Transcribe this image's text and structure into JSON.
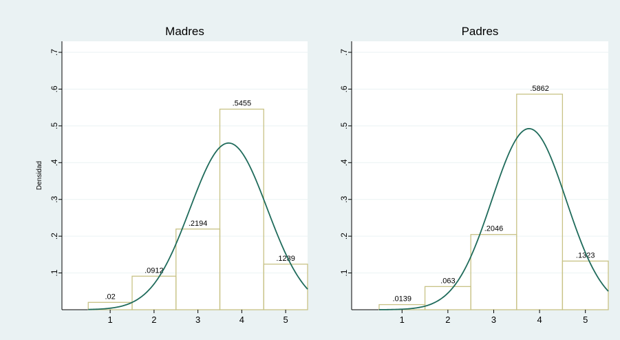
{
  "colors": {
    "figure_bg": "#eaf2f3",
    "plot_bg": "#ffffff",
    "bar_outline": "#c8c285",
    "curve": "#1f6b5b",
    "grid": "#eaf2f3"
  },
  "chart_data": [
    {
      "type": "bar",
      "title": "Madres",
      "ylabel": "Densidad",
      "xlabel": "",
      "categories": [
        "1",
        "2",
        "3",
        "4",
        "5"
      ],
      "values": [
        0.02,
        0.0912,
        0.2194,
        0.5455,
        0.1239
      ],
      "value_labels": [
        ".02",
        ".0912",
        ".2194",
        ".5455",
        ".1239"
      ],
      "x_ticks": [
        "1",
        "2",
        "3",
        "4",
        "5"
      ],
      "y_ticks": [
        ".1",
        ".2",
        ".3",
        ".4",
        ".5",
        ".6",
        ".7"
      ],
      "y_tick_values": [
        0.1,
        0.2,
        0.3,
        0.4,
        0.5,
        0.6,
        0.7
      ],
      "xlim": [
        -0.1,
        5.5
      ],
      "ylim": [
        0,
        0.73
      ],
      "grid": true,
      "overlay": {
        "type": "normal-density",
        "mean": 3.7,
        "sd": 0.88
      }
    },
    {
      "type": "bar",
      "title": "Padres",
      "ylabel": "",
      "xlabel": "",
      "categories": [
        "1",
        "2",
        "3",
        "4",
        "5"
      ],
      "values": [
        0.0139,
        0.063,
        0.2046,
        0.5862,
        0.1323
      ],
      "value_labels": [
        ".0139",
        ".063",
        ".2046",
        ".5862",
        ".1323"
      ],
      "x_ticks": [
        "1",
        "2",
        "3",
        "4",
        "5"
      ],
      "y_ticks": [
        ".1",
        ".2",
        ".3",
        ".4",
        ".5",
        ".6",
        ".7"
      ],
      "y_tick_values": [
        0.1,
        0.2,
        0.3,
        0.4,
        0.5,
        0.6,
        0.7
      ],
      "xlim": [
        -0.1,
        5.5
      ],
      "ylim": [
        0,
        0.73
      ],
      "grid": true,
      "overlay": {
        "type": "normal-density",
        "mean": 3.77,
        "sd": 0.81
      }
    }
  ]
}
